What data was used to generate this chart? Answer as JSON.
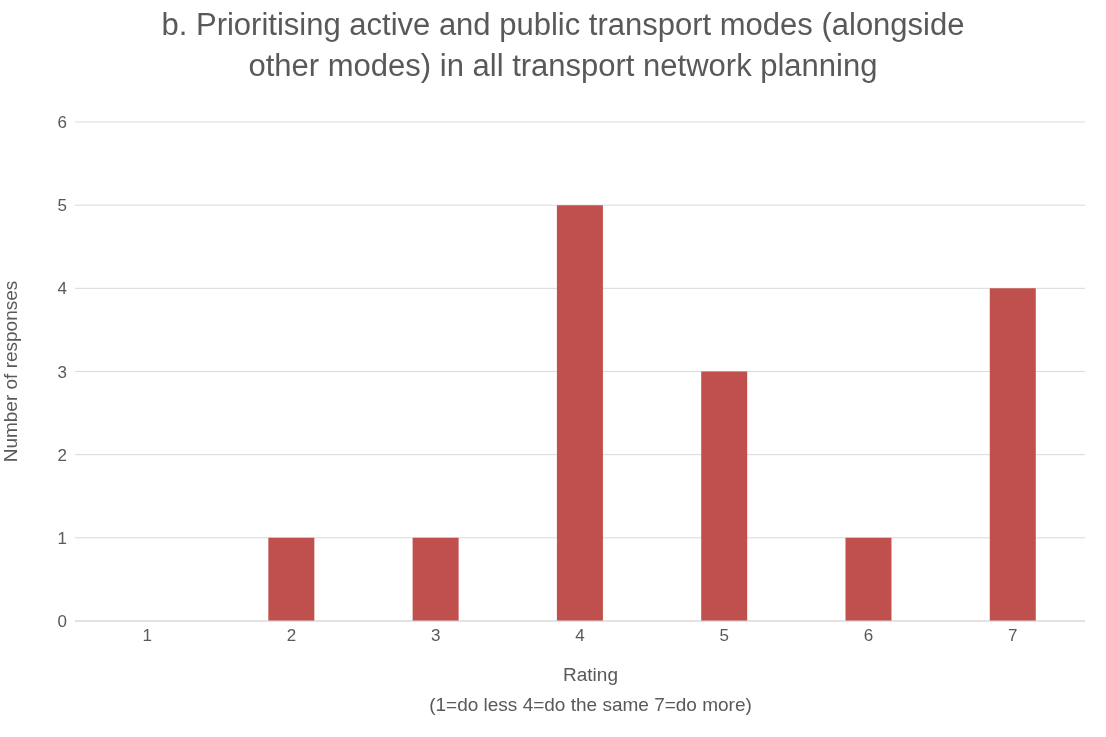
{
  "chart_data": {
    "type": "bar",
    "title": "b. Prioritising active and public transport modes (alongside other modes) in all transport network planning",
    "xlabel": "Rating\n(1=do less 4=do the same 7=do more)",
    "ylabel": "Number of responses",
    "categories": [
      "1",
      "2",
      "3",
      "4",
      "5",
      "6",
      "7"
    ],
    "values": [
      0,
      1,
      1,
      5,
      3,
      1,
      4
    ],
    "color": "#c0504d",
    "ylim": [
      0,
      6
    ],
    "yticks": [
      0,
      1,
      2,
      3,
      4,
      5,
      6
    ],
    "grid": "y"
  }
}
